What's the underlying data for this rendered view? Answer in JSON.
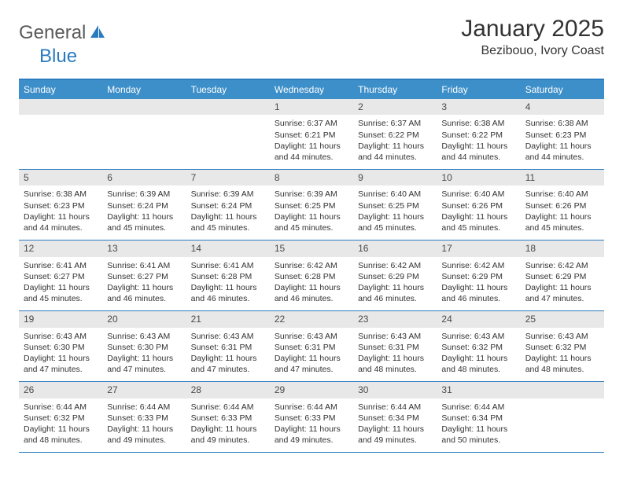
{
  "logo": {
    "part1": "General",
    "part2": "Blue"
  },
  "title": "January 2025",
  "subtitle": "Bezibouo, Ivory Coast",
  "header_bg": "#3d8fc9",
  "header_text": "#ffffff",
  "border_color": "#2b7bbf",
  "daynum_bg": "#e8e8e8",
  "daynum_color": "#4a4a4a",
  "detail_color": "#333333",
  "detail_fontsize": 10.5,
  "daynum_fontsize": 12,
  "header_fontsize": 12,
  "title_fontsize": 30,
  "subtitle_fontsize": 16,
  "dow": [
    "Sunday",
    "Monday",
    "Tuesday",
    "Wednesday",
    "Thursday",
    "Friday",
    "Saturday"
  ],
  "weeks": [
    [
      null,
      null,
      null,
      {
        "n": "1",
        "sr": "6:37 AM",
        "ss": "6:21 PM",
        "dh": "11",
        "dm": "44"
      },
      {
        "n": "2",
        "sr": "6:37 AM",
        "ss": "6:22 PM",
        "dh": "11",
        "dm": "44"
      },
      {
        "n": "3",
        "sr": "6:38 AM",
        "ss": "6:22 PM",
        "dh": "11",
        "dm": "44"
      },
      {
        "n": "4",
        "sr": "6:38 AM",
        "ss": "6:23 PM",
        "dh": "11",
        "dm": "44"
      }
    ],
    [
      {
        "n": "5",
        "sr": "6:38 AM",
        "ss": "6:23 PM",
        "dh": "11",
        "dm": "44"
      },
      {
        "n": "6",
        "sr": "6:39 AM",
        "ss": "6:24 PM",
        "dh": "11",
        "dm": "45"
      },
      {
        "n": "7",
        "sr": "6:39 AM",
        "ss": "6:24 PM",
        "dh": "11",
        "dm": "45"
      },
      {
        "n": "8",
        "sr": "6:39 AM",
        "ss": "6:25 PM",
        "dh": "11",
        "dm": "45"
      },
      {
        "n": "9",
        "sr": "6:40 AM",
        "ss": "6:25 PM",
        "dh": "11",
        "dm": "45"
      },
      {
        "n": "10",
        "sr": "6:40 AM",
        "ss": "6:26 PM",
        "dh": "11",
        "dm": "45"
      },
      {
        "n": "11",
        "sr": "6:40 AM",
        "ss": "6:26 PM",
        "dh": "11",
        "dm": "45"
      }
    ],
    [
      {
        "n": "12",
        "sr": "6:41 AM",
        "ss": "6:27 PM",
        "dh": "11",
        "dm": "45"
      },
      {
        "n": "13",
        "sr": "6:41 AM",
        "ss": "6:27 PM",
        "dh": "11",
        "dm": "46"
      },
      {
        "n": "14",
        "sr": "6:41 AM",
        "ss": "6:28 PM",
        "dh": "11",
        "dm": "46"
      },
      {
        "n": "15",
        "sr": "6:42 AM",
        "ss": "6:28 PM",
        "dh": "11",
        "dm": "46"
      },
      {
        "n": "16",
        "sr": "6:42 AM",
        "ss": "6:29 PM",
        "dh": "11",
        "dm": "46"
      },
      {
        "n": "17",
        "sr": "6:42 AM",
        "ss": "6:29 PM",
        "dh": "11",
        "dm": "46"
      },
      {
        "n": "18",
        "sr": "6:42 AM",
        "ss": "6:29 PM",
        "dh": "11",
        "dm": "47"
      }
    ],
    [
      {
        "n": "19",
        "sr": "6:43 AM",
        "ss": "6:30 PM",
        "dh": "11",
        "dm": "47"
      },
      {
        "n": "20",
        "sr": "6:43 AM",
        "ss": "6:30 PM",
        "dh": "11",
        "dm": "47"
      },
      {
        "n": "21",
        "sr": "6:43 AM",
        "ss": "6:31 PM",
        "dh": "11",
        "dm": "47"
      },
      {
        "n": "22",
        "sr": "6:43 AM",
        "ss": "6:31 PM",
        "dh": "11",
        "dm": "47"
      },
      {
        "n": "23",
        "sr": "6:43 AM",
        "ss": "6:31 PM",
        "dh": "11",
        "dm": "48"
      },
      {
        "n": "24",
        "sr": "6:43 AM",
        "ss": "6:32 PM",
        "dh": "11",
        "dm": "48"
      },
      {
        "n": "25",
        "sr": "6:43 AM",
        "ss": "6:32 PM",
        "dh": "11",
        "dm": "48"
      }
    ],
    [
      {
        "n": "26",
        "sr": "6:44 AM",
        "ss": "6:32 PM",
        "dh": "11",
        "dm": "48"
      },
      {
        "n": "27",
        "sr": "6:44 AM",
        "ss": "6:33 PM",
        "dh": "11",
        "dm": "49"
      },
      {
        "n": "28",
        "sr": "6:44 AM",
        "ss": "6:33 PM",
        "dh": "11",
        "dm": "49"
      },
      {
        "n": "29",
        "sr": "6:44 AM",
        "ss": "6:33 PM",
        "dh": "11",
        "dm": "49"
      },
      {
        "n": "30",
        "sr": "6:44 AM",
        "ss": "6:34 PM",
        "dh": "11",
        "dm": "49"
      },
      {
        "n": "31",
        "sr": "6:44 AM",
        "ss": "6:34 PM",
        "dh": "11",
        "dm": "50"
      },
      null
    ]
  ],
  "labels": {
    "sunrise": "Sunrise:",
    "sunset": "Sunset:",
    "daylight_prefix": "Daylight:",
    "hours_word": "hours",
    "and_word": "and",
    "minutes_word": "minutes."
  }
}
